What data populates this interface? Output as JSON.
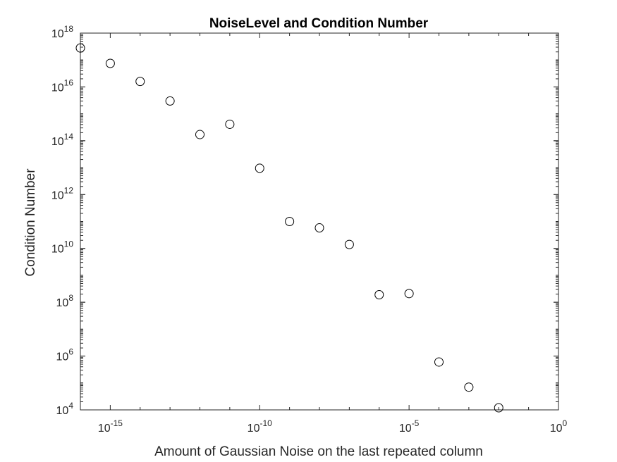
{
  "chart_data": {
    "type": "scatter",
    "title": "NoiseLevel and Condition Number",
    "xlabel": "Amount of Gaussian Noise on the last repeated column",
    "ylabel": "Condition Number",
    "xscale": "log",
    "yscale": "log",
    "xlim": [
      1e-16,
      1
    ],
    "ylim": [
      10000.0,
      1e+18
    ],
    "grid": false,
    "box": true,
    "marker": "open-circle",
    "marker_color": "#000000",
    "x_ticks": [
      {
        "base": "10",
        "exp": "-15"
      },
      {
        "base": "10",
        "exp": "-10"
      },
      {
        "base": "10",
        "exp": "-5"
      },
      {
        "base": "10",
        "exp": "0"
      }
    ],
    "y_ticks": [
      {
        "base": "10",
        "exp": "4"
      },
      {
        "base": "10",
        "exp": "6"
      },
      {
        "base": "10",
        "exp": "8"
      },
      {
        "base": "10",
        "exp": "10"
      },
      {
        "base": "10",
        "exp": "12"
      },
      {
        "base": "10",
        "exp": "14"
      },
      {
        "base": "10",
        "exp": "16"
      },
      {
        "base": "10",
        "exp": "18"
      }
    ],
    "points": [
      {
        "x": 1e-16,
        "y": 2.8e+17
      },
      {
        "x": 1e-15,
        "y": 7.5e+16
      },
      {
        "x": 1e-14,
        "y": 1.6e+16
      },
      {
        "x": 1e-13,
        "y": 3000000000000000.0
      },
      {
        "x": 1e-12,
        "y": 170000000000000.0
      },
      {
        "x": 1e-11,
        "y": 410000000000000.0
      },
      {
        "x": 1e-10,
        "y": 9500000000000.0
      },
      {
        "x": 1e-09,
        "y": 100000000000.0
      },
      {
        "x": 1e-08,
        "y": 58000000000.0
      },
      {
        "x": 1e-07,
        "y": 14000000000.0
      },
      {
        "x": 1e-06,
        "y": 190000000.0
      },
      {
        "x": 1e-05,
        "y": 210000000.0
      },
      {
        "x": 0.0001,
        "y": 600000.0
      },
      {
        "x": 0.001,
        "y": 70000.0
      },
      {
        "x": 0.01,
        "y": 12000.0
      }
    ]
  }
}
